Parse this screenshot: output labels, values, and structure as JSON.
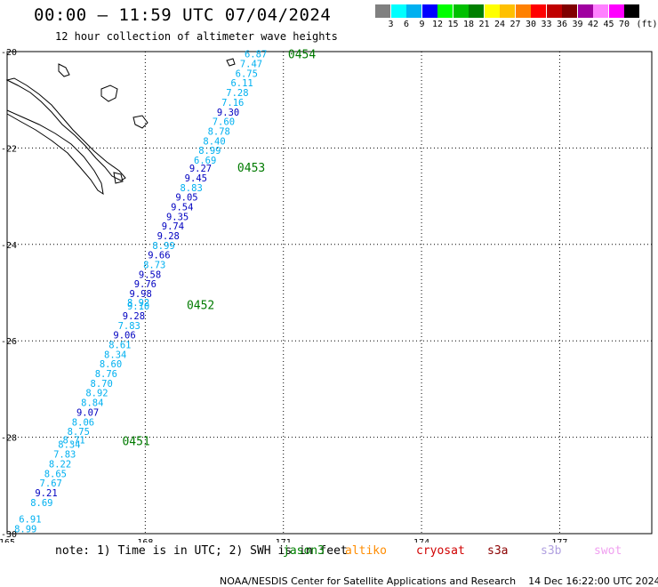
{
  "header": {
    "title": "00:00 – 11:59 UTC 07/04/2024",
    "subtitle": "12 hour collection of altimeter wave heights"
  },
  "colorbar": {
    "colors": [
      "#808080",
      "#00ffff",
      "#00b0f0",
      "#0000ff",
      "#00ff00",
      "#00c000",
      "#008000",
      "#ffff00",
      "#ffc000",
      "#ff8000",
      "#ff0000",
      "#c00000",
      "#800000",
      "#a000a0",
      "#ff80ff",
      "#ff00ff",
      "#000000"
    ],
    "labels": [
      "3",
      "6",
      "9",
      "12",
      "15",
      "18",
      "21",
      "24",
      "27",
      "30",
      "33",
      "36",
      "39",
      "42",
      "45",
      "70"
    ],
    "unit": "(ft)"
  },
  "legend": {
    "note": "note: 1) Time is in UTC; 2) SWH is in feet",
    "satellites": [
      {
        "name": "jason3",
        "color": "#008000"
      },
      {
        "name": "altiko",
        "color": "#ff8c00"
      },
      {
        "name": "cryosat",
        "color": "#d00000"
      },
      {
        "name": "s3a",
        "color": "#8b0000"
      },
      {
        "name": "s3b",
        "color": "#b0a0e0"
      },
      {
        "name": "swot",
        "color": "#f0a0f0"
      }
    ]
  },
  "footer": {
    "credit": "NOAA/NESDIS Center for Satellite Applications and Research",
    "generated": "14 Dec 16:22:00 UTC 2024"
  },
  "chart_data": {
    "type": "scatter",
    "xlabel": "",
    "ylabel": "",
    "x_ticks": [
      165,
      168,
      171,
      174,
      177
    ],
    "y_ticks": [
      -20,
      -22,
      -24,
      -26,
      -28,
      -30
    ],
    "xlim": [
      165,
      179
    ],
    "ylim": [
      -30,
      -20
    ],
    "grid": true,
    "pass_labels": [
      {
        "text": "0454",
        "lon": 171.1,
        "lat": -20.05
      },
      {
        "text": "0453",
        "lon": 170.0,
        "lat": -22.4
      },
      {
        "text": "0452",
        "lon": 168.9,
        "lat": -25.25
      },
      {
        "text": "0451",
        "lon": 167.5,
        "lat": -28.07
      }
    ],
    "points": [
      {
        "lon": 170.4,
        "lat": -20.05,
        "swh": 6.87,
        "color": "#00b0f0"
      },
      {
        "lon": 170.3,
        "lat": -20.25,
        "swh": 7.47,
        "color": "#00b0f0"
      },
      {
        "lon": 170.2,
        "lat": -20.45,
        "swh": 6.75,
        "color": "#00b0f0"
      },
      {
        "lon": 170.1,
        "lat": -20.65,
        "swh": 6.11,
        "color": "#00b0f0"
      },
      {
        "lon": 170.0,
        "lat": -20.85,
        "swh": 7.28,
        "color": "#00b0f0"
      },
      {
        "lon": 169.9,
        "lat": -21.05,
        "swh": 7.16,
        "color": "#00b0f0"
      },
      {
        "lon": 169.8,
        "lat": -21.25,
        "swh": 9.3,
        "color": "#0000c0"
      },
      {
        "lon": 169.7,
        "lat": -21.45,
        "swh": 7.6,
        "color": "#00b0f0"
      },
      {
        "lon": 169.6,
        "lat": -21.65,
        "swh": 8.78,
        "color": "#00b0f0"
      },
      {
        "lon": 169.5,
        "lat": -21.85,
        "swh": 8.4,
        "color": "#00b0f0"
      },
      {
        "lon": 169.4,
        "lat": -22.05,
        "swh": 8.99,
        "color": "#00b0f0"
      },
      {
        "lon": 169.3,
        "lat": -22.25,
        "swh": 6.69,
        "color": "#00b0f0"
      },
      {
        "lon": 169.2,
        "lat": -22.42,
        "swh": 9.27,
        "color": "#0000c0"
      },
      {
        "lon": 169.1,
        "lat": -22.62,
        "swh": 9.45,
        "color": "#0000c0"
      },
      {
        "lon": 169.0,
        "lat": -22.82,
        "swh": 8.83,
        "color": "#00b0f0"
      },
      {
        "lon": 168.9,
        "lat": -23.02,
        "swh": 9.05,
        "color": "#0000c0"
      },
      {
        "lon": 168.8,
        "lat": -23.22,
        "swh": 9.54,
        "color": "#0000c0"
      },
      {
        "lon": 168.7,
        "lat": -23.42,
        "swh": 9.35,
        "color": "#0000c0"
      },
      {
        "lon": 168.6,
        "lat": -23.62,
        "swh": 9.74,
        "color": "#0000c0"
      },
      {
        "lon": 168.5,
        "lat": -23.82,
        "swh": 9.28,
        "color": "#0000c0"
      },
      {
        "lon": 168.4,
        "lat": -24.02,
        "swh": 8.99,
        "color": "#00b0f0"
      },
      {
        "lon": 168.3,
        "lat": -24.22,
        "swh": 9.66,
        "color": "#0000c0"
      },
      {
        "lon": 168.2,
        "lat": -24.42,
        "swh": 8.73,
        "color": "#00b0f0"
      },
      {
        "lon": 168.1,
        "lat": -24.62,
        "swh": 9.58,
        "color": "#0000c0"
      },
      {
        "lon": 168.0,
        "lat": -24.82,
        "swh": 9.76,
        "color": "#0000c0"
      },
      {
        "lon": 167.9,
        "lat": -25.02,
        "swh": 9.98,
        "color": "#0000c0"
      },
      {
        "lon": 167.85,
        "lat": -25.2,
        "swh": 8.92,
        "color": "#00b0f0"
      },
      {
        "lon": 167.85,
        "lat": -25.28,
        "swh": 9.1,
        "color": "#00b0f0"
      },
      {
        "lon": 167.75,
        "lat": -25.48,
        "swh": 9.28,
        "color": "#0000c0"
      },
      {
        "lon": 167.65,
        "lat": -25.68,
        "swh": 7.83,
        "color": "#00b0f0"
      },
      {
        "lon": 167.55,
        "lat": -25.88,
        "swh": 9.06,
        "color": "#0000c0"
      },
      {
        "lon": 167.45,
        "lat": -26.08,
        "swh": 8.61,
        "color": "#00b0f0"
      },
      {
        "lon": 167.35,
        "lat": -26.28,
        "swh": 8.34,
        "color": "#00b0f0"
      },
      {
        "lon": 167.25,
        "lat": -26.48,
        "swh": 8.6,
        "color": "#00b0f0"
      },
      {
        "lon": 167.15,
        "lat": -26.68,
        "swh": 8.76,
        "color": "#00b0f0"
      },
      {
        "lon": 167.05,
        "lat": -26.88,
        "swh": 8.7,
        "color": "#00b0f0"
      },
      {
        "lon": 166.95,
        "lat": -27.08,
        "swh": 8.92,
        "color": "#00b0f0"
      },
      {
        "lon": 166.85,
        "lat": -27.28,
        "swh": 8.84,
        "color": "#00b0f0"
      },
      {
        "lon": 166.75,
        "lat": -27.48,
        "swh": 9.07,
        "color": "#0000c0"
      },
      {
        "lon": 166.65,
        "lat": -27.68,
        "swh": 8.06,
        "color": "#00b0f0"
      },
      {
        "lon": 166.55,
        "lat": -27.88,
        "swh": 8.75,
        "color": "#00b0f0"
      },
      {
        "lon": 166.45,
        "lat": -28.05,
        "swh": 8.71,
        "color": "#00b0f0"
      },
      {
        "lon": 166.35,
        "lat": -28.15,
        "swh": 8.34,
        "color": "#00b0f0"
      },
      {
        "lon": 166.25,
        "lat": -28.35,
        "swh": 7.83,
        "color": "#00b0f0"
      },
      {
        "lon": 166.15,
        "lat": -28.55,
        "swh": 8.22,
        "color": "#00b0f0"
      },
      {
        "lon": 166.05,
        "lat": -28.75,
        "swh": 8.65,
        "color": "#00b0f0"
      },
      {
        "lon": 165.95,
        "lat": -28.95,
        "swh": 7.67,
        "color": "#00b0f0"
      },
      {
        "lon": 165.85,
        "lat": -29.15,
        "swh": 9.21,
        "color": "#0000c0"
      },
      {
        "lon": 165.75,
        "lat": -29.35,
        "swh": 8.69,
        "color": "#00b0f0"
      },
      {
        "lon": 165.5,
        "lat": -29.7,
        "swh": 6.91,
        "color": "#00b0f0"
      },
      {
        "lon": 165.4,
        "lat": -29.9,
        "swh": 8.99,
        "color": "#00b0f0"
      }
    ]
  }
}
